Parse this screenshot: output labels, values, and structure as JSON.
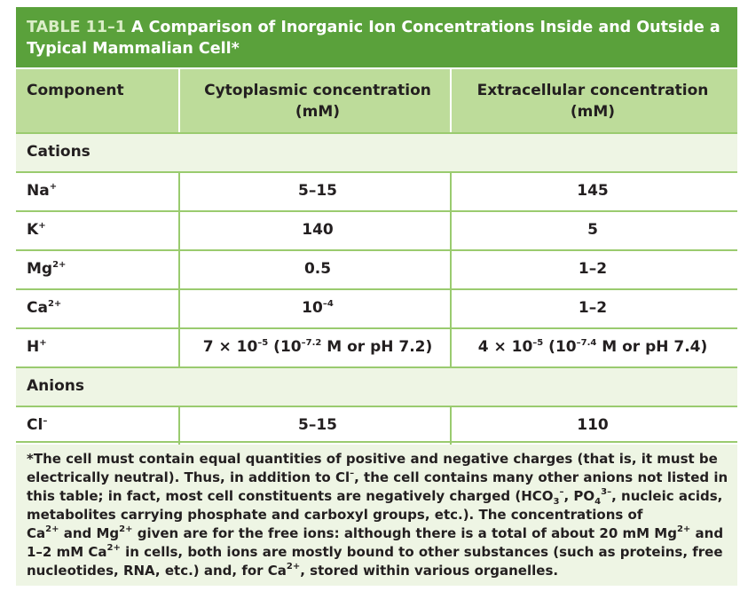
{
  "table": {
    "label": "TABLE 11–1",
    "title": "A Comparison of Inorganic Ion Concentrations Inside and Outside a Typical Mammalian Cell*",
    "headers": {
      "component": "Component",
      "cyto_line1": "Cytoplasmic concentration",
      "cyto_line2": "(mM)",
      "extra_line1": "Extracellular concentration",
      "extra_line2": "(mM)"
    },
    "sections": {
      "cations": "Cations",
      "anions": "Anions"
    },
    "rows": {
      "na": {
        "symbol": "Na",
        "charge": "+",
        "cyto": "5–15",
        "extra": "145"
      },
      "k": {
        "symbol": "K",
        "charge": "+",
        "cyto": "140",
        "extra": "5"
      },
      "mg": {
        "symbol": "Mg",
        "charge": "2+",
        "cyto": "0.5",
        "extra": "1–2"
      },
      "ca": {
        "symbol": "Ca",
        "charge": "2+",
        "cyto_base": "10",
        "cyto_exp": "–4",
        "extra": "1–2"
      },
      "h": {
        "symbol": "H",
        "charge": "+",
        "cyto_a": "7 × 10",
        "cyto_a_exp": "–5",
        "cyto_b": " (10",
        "cyto_b_exp": "–7.2",
        "cyto_c": " M or pH 7.2)",
        "extra_a": "4 × 10",
        "extra_a_exp": "–5",
        "extra_b": " (10",
        "extra_b_exp": "–7.4",
        "extra_c": " M or pH 7.4)"
      },
      "cl": {
        "symbol": "Cl",
        "charge": "–",
        "cyto": "5–15",
        "extra": "110"
      }
    },
    "footnote": {
      "l1": "*The cell must contain equal quantities of positive and negative charges (that is, it must be",
      "l2a": "electrically neutral). Thus, in addition to Cl",
      "l2sup": "–",
      "l2b": ", the cell contains many other anions not listed in",
      "l3a": "this table; in fact, most cell constituents are negatively charged (HCO",
      "l3sub1": "3",
      "l3sup1": "–",
      "l3b": ", PO",
      "l3sub2": "4",
      "l3sup2": "3–",
      "l3c": ", nucleic acids,",
      "l4": "metabolites carrying phosphate and carboxyl groups, etc.). The concentrations of",
      "l5a": "Ca",
      "l5sup1": "2+",
      "l5b": " and Mg",
      "l5sup2": "2+",
      "l5c": " given are for the free ions: although there is a total of about 20 mM Mg",
      "l5sup3": "2+",
      "l5d": " and",
      "l6a": "1–2 mM Ca",
      "l6sup": "2+",
      "l6b": " in cells, both ions are mostly bound to other substances (such as proteins, free",
      "l7a": "nucleotides, RNA, etc.) and, for Ca",
      "l7sup": "2+",
      "l7b": ", stored within various organelles."
    },
    "colors": {
      "title_bg": "#5aa13b",
      "header_bg": "#bddc9a",
      "section_bg": "#eef5e4",
      "rule": "#9acb6f"
    }
  }
}
